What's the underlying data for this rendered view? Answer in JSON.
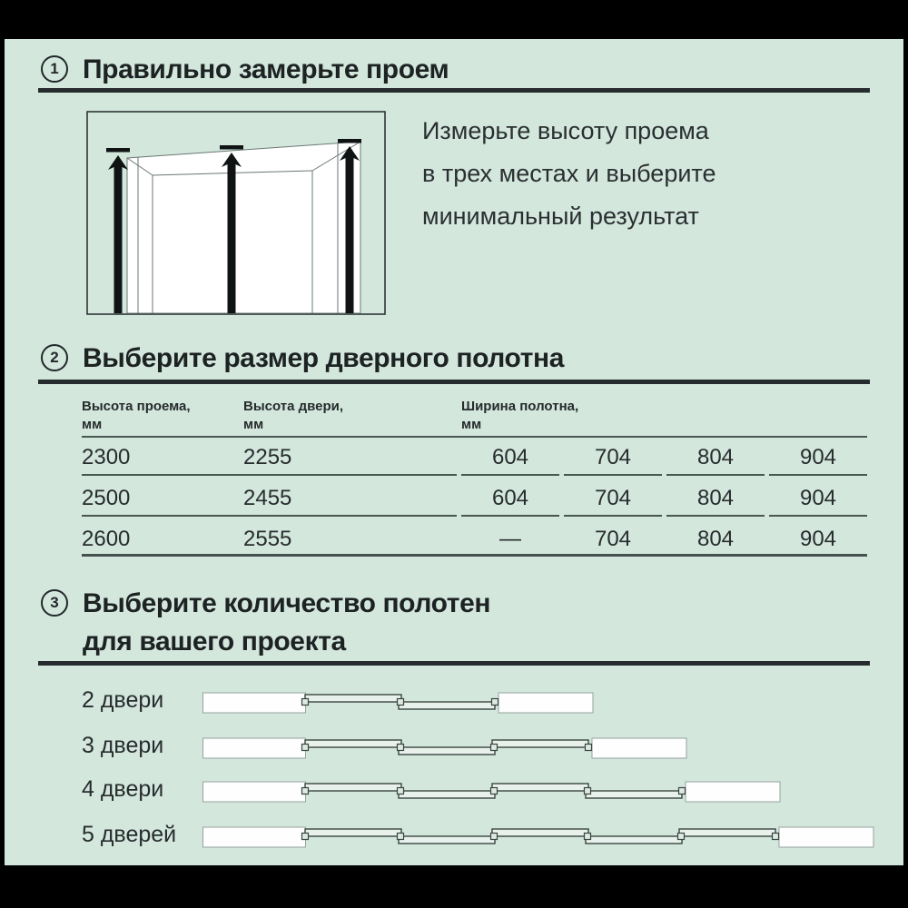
{
  "colors": {
    "background": "#d3e7dd",
    "frame": "#000000",
    "ink": "#1d2223",
    "table_line": "#4a5652"
  },
  "steps": {
    "step1": {
      "number": "1",
      "title": "Правильно замерьте проем",
      "description_lines": [
        "Измерьте высоту проема",
        "в трех местах и выберите",
        "минимальный результат"
      ]
    },
    "step2": {
      "number": "2",
      "title": "Выберите размер дверного полотна",
      "table": {
        "headers": [
          {
            "line1": "Высота проема,",
            "line2": "мм"
          },
          {
            "line1": "Высота двери,",
            "line2": "мм"
          },
          {
            "line1": "Ширина полотна,",
            "line2": "мм"
          }
        ],
        "rows": [
          {
            "opening_height": "2300",
            "door_height": "2255",
            "widths": [
              "604",
              "704",
              "804",
              "904"
            ]
          },
          {
            "opening_height": "2500",
            "door_height": "2455",
            "widths": [
              "604",
              "704",
              "804",
              "904"
            ]
          },
          {
            "opening_height": "2600",
            "door_height": "2555",
            "widths": [
              "—",
              "704",
              "804",
              "904"
            ]
          }
        ]
      }
    },
    "step3": {
      "number": "3",
      "title_line1": "Выберите количество полотен",
      "title_line2": "для вашего проекта",
      "options": [
        {
          "label": "2 двери",
          "panels": 2
        },
        {
          "label": "3 двери",
          "panels": 3
        },
        {
          "label": "4 двери",
          "panels": 4
        },
        {
          "label": "5 дверей",
          "panels": 5
        }
      ]
    }
  }
}
